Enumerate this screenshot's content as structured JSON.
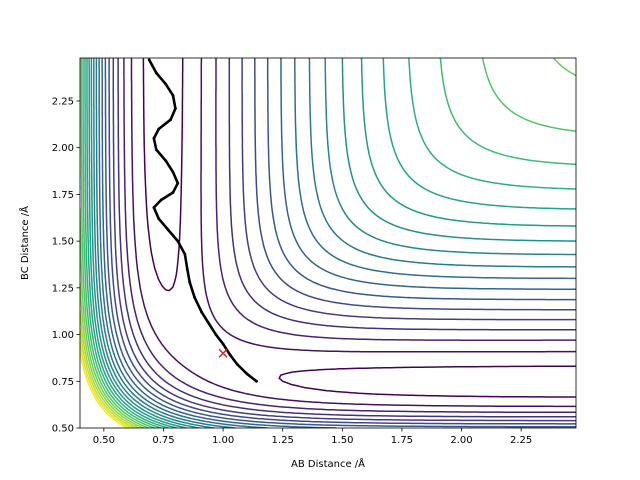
{
  "chart_data": {
    "type": "contour",
    "title": "",
    "xlabel": "AB Distance /Å",
    "ylabel": "BC Distance /Å",
    "xlim": [
      0.4,
      2.48
    ],
    "ylim": [
      0.5,
      2.48
    ],
    "x_ticks": [
      "0.50",
      "0.75",
      "1.00",
      "1.25",
      "1.50",
      "1.75",
      "2.00",
      "2.25"
    ],
    "y_ticks": [
      "0.50",
      "0.75",
      "1.00",
      "1.25",
      "1.50",
      "1.75",
      "2.00",
      "2.25"
    ],
    "grid": false,
    "legend": "none",
    "colormap": "viridis",
    "contour_count": 23,
    "marker": {
      "symbol": "x",
      "x": 1.0,
      "y": 0.9,
      "color": "#d62728"
    },
    "trajectory": {
      "color": "#000000",
      "points": [
        [
          0.69,
          2.47
        ],
        [
          0.72,
          2.4
        ],
        [
          0.76,
          2.34
        ],
        [
          0.79,
          2.28
        ],
        [
          0.8,
          2.21
        ],
        [
          0.78,
          2.15
        ],
        [
          0.73,
          2.1
        ],
        [
          0.71,
          2.05
        ],
        [
          0.72,
          1.99
        ],
        [
          0.76,
          1.93
        ],
        [
          0.79,
          1.87
        ],
        [
          0.81,
          1.81
        ],
        [
          0.79,
          1.76
        ],
        [
          0.74,
          1.72
        ],
        [
          0.71,
          1.68
        ],
        [
          0.73,
          1.62
        ],
        [
          0.77,
          1.56
        ],
        [
          0.81,
          1.5
        ],
        [
          0.84,
          1.43
        ],
        [
          0.85,
          1.35
        ],
        [
          0.86,
          1.28
        ],
        [
          0.88,
          1.2
        ],
        [
          0.91,
          1.12
        ],
        [
          0.94,
          1.06
        ],
        [
          0.97,
          1.0
        ],
        [
          1.0,
          0.95
        ],
        [
          1.03,
          0.89
        ],
        [
          1.06,
          0.84
        ],
        [
          1.1,
          0.79
        ],
        [
          1.14,
          0.75
        ]
      ]
    }
  }
}
